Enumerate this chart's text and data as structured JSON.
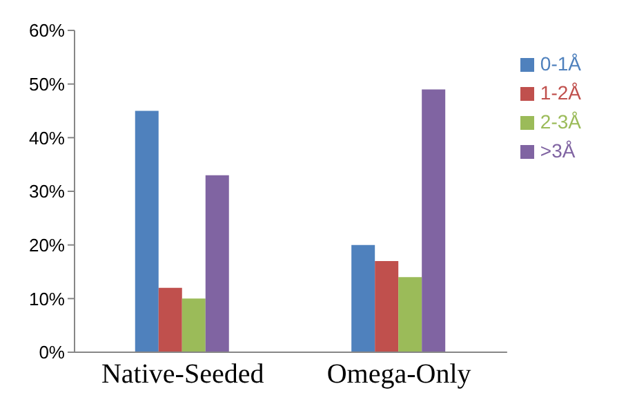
{
  "chart_data": {
    "type": "bar",
    "categories": [
      "Native-Seeded",
      "Omega-Only"
    ],
    "series": [
      {
        "name": "0-1Å",
        "color": "#4f81bd",
        "values": [
          45,
          20
        ]
      },
      {
        "name": "1-2Å",
        "color": "#c0504d",
        "values": [
          12,
          17
        ]
      },
      {
        "name": "2-3Å",
        "color": "#9bbb59",
        "values": [
          10,
          14
        ]
      },
      {
        "name": ">3Å",
        "color": "#8064a2",
        "values": [
          33,
          49
        ]
      }
    ],
    "ylim": [
      0,
      60
    ],
    "yticks": [
      {
        "value": 0,
        "label": "0%"
      },
      {
        "value": 10,
        "label": "10%"
      },
      {
        "value": 20,
        "label": "20%"
      },
      {
        "value": 30,
        "label": "30%"
      },
      {
        "value": 40,
        "label": "40%"
      },
      {
        "value": 50,
        "label": "50%"
      },
      {
        "value": 60,
        "label": "60%"
      }
    ],
    "grid": false,
    "legend": "top right"
  }
}
